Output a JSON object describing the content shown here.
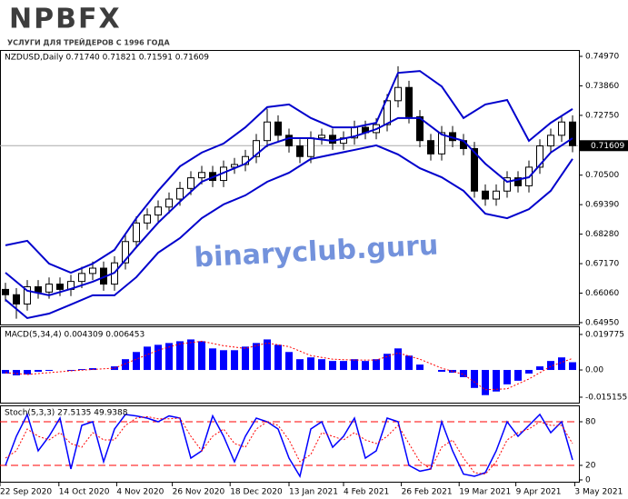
{
  "logo": {
    "brand": "NPBFX",
    "tagline": "УСЛУГИ ДЛЯ ТРЕЙДЕРОВ С 1996 ГОДА"
  },
  "watermark": "binaryclub.guru",
  "chart_data": [
    {
      "type": "candlestick",
      "title": "NZDUSD,Daily  0.71740 0.71821 0.71591 0.71609",
      "color": "#000000",
      "up_fill": "#ffffff",
      "down_fill": "#000000",
      "xlim": [
        -0.5,
        52.5
      ],
      "ylim": [
        0.6488,
        0.7521
      ],
      "yticks": [
        {
          "value": 0.7497,
          "label": "0.74970"
        },
        {
          "value": 0.7386,
          "label": "0.73860"
        },
        {
          "value": 0.7275,
          "label": "0.72750"
        },
        {
          "value": 0.705,
          "label": "0.70500"
        },
        {
          "value": 0.6939,
          "label": "0.69390"
        },
        {
          "value": 0.6828,
          "label": "0.68280"
        },
        {
          "value": 0.6717,
          "label": "0.67170"
        },
        {
          "value": 0.6606,
          "label": "0.66060"
        },
        {
          "value": 0.6495,
          "label": "0.64950"
        }
      ],
      "current": {
        "value": 0.71609,
        "label": "0.71609"
      },
      "x": [
        0,
        1,
        2,
        3,
        4,
        5,
        6,
        7,
        8,
        9,
        10,
        11,
        12,
        13,
        14,
        15,
        16,
        17,
        18,
        19,
        20,
        21,
        22,
        23,
        24,
        25,
        26,
        27,
        28,
        29,
        30,
        31,
        32,
        33,
        34,
        35,
        36,
        37,
        38,
        39,
        40,
        41,
        42,
        43,
        44,
        45,
        46,
        47,
        48,
        49,
        50,
        51,
        52
      ],
      "open": [
        0.662,
        0.66,
        0.6565,
        0.663,
        0.661,
        0.664,
        0.662,
        0.665,
        0.668,
        0.67,
        0.664,
        0.672,
        0.68,
        0.687,
        0.69,
        0.693,
        0.696,
        0.7,
        0.704,
        0.706,
        0.703,
        0.708,
        0.709,
        0.712,
        0.718,
        0.725,
        0.72,
        0.716,
        0.712,
        0.719,
        0.72,
        0.717,
        0.719,
        0.723,
        0.721,
        0.724,
        0.733,
        0.738,
        0.727,
        0.718,
        0.713,
        0.721,
        0.718,
        0.715,
        0.699,
        0.696,
        0.699,
        0.704,
        0.701,
        0.708,
        0.716,
        0.72,
        0.725
      ],
      "high": [
        0.6645,
        0.6625,
        0.6655,
        0.6655,
        0.6665,
        0.6665,
        0.6675,
        0.6705,
        0.6725,
        0.6725,
        0.6745,
        0.6825,
        0.6895,
        0.6925,
        0.6955,
        0.6985,
        0.7025,
        0.7065,
        0.7085,
        0.7085,
        0.7105,
        0.7115,
        0.7145,
        0.7205,
        0.73,
        0.7275,
        0.7225,
        0.7185,
        0.7215,
        0.7225,
        0.7225,
        0.7215,
        0.7255,
        0.7255,
        0.7265,
        0.7355,
        0.746,
        0.7405,
        0.7295,
        0.7205,
        0.7235,
        0.7235,
        0.7205,
        0.7175,
        0.7015,
        0.7015,
        0.7065,
        0.7065,
        0.7105,
        0.7185,
        0.7225,
        0.7275,
        0.7275
      ],
      "low": [
        0.6575,
        0.651,
        0.654,
        0.6585,
        0.6585,
        0.6595,
        0.6595,
        0.6625,
        0.6655,
        0.6615,
        0.6615,
        0.6695,
        0.6775,
        0.6845,
        0.6875,
        0.6905,
        0.6935,
        0.6975,
        0.7015,
        0.7005,
        0.7005,
        0.7055,
        0.7065,
        0.7095,
        0.7155,
        0.7175,
        0.7135,
        0.7095,
        0.7095,
        0.7165,
        0.7145,
        0.7145,
        0.7165,
        0.7185,
        0.7185,
        0.7215,
        0.7305,
        0.7245,
        0.7155,
        0.7105,
        0.7105,
        0.7155,
        0.7125,
        0.6965,
        0.6935,
        0.6935,
        0.6965,
        0.6985,
        0.6985,
        0.7055,
        0.7135,
        0.7175,
        0.7136
      ],
      "close": [
        0.66,
        0.6565,
        0.663,
        0.661,
        0.664,
        0.662,
        0.665,
        0.668,
        0.67,
        0.664,
        0.672,
        0.68,
        0.687,
        0.69,
        0.693,
        0.696,
        0.7,
        0.704,
        0.706,
        0.703,
        0.708,
        0.709,
        0.712,
        0.718,
        0.725,
        0.72,
        0.716,
        0.712,
        0.719,
        0.72,
        0.717,
        0.719,
        0.723,
        0.721,
        0.724,
        0.733,
        0.738,
        0.727,
        0.718,
        0.713,
        0.721,
        0.718,
        0.715,
        0.699,
        0.696,
        0.699,
        0.704,
        0.701,
        0.708,
        0.716,
        0.72,
        0.725,
        0.71609
      ],
      "bands": [
        {
          "color": "#0000cc",
          "x": [
            0,
            2,
            4,
            6,
            8,
            10,
            12,
            14,
            16,
            18,
            20,
            22,
            24,
            26,
            28,
            30,
            32,
            34,
            36,
            38,
            40,
            42,
            44,
            46,
            48,
            50,
            52
          ],
          "values": [
            0.6786,
            0.6803,
            0.6717,
            0.6683,
            0.6717,
            0.6769,
            0.6888,
            0.6991,
            0.7083,
            0.7135,
            0.7169,
            0.723,
            0.7306,
            0.7316,
            0.7265,
            0.723,
            0.723,
            0.7247,
            0.7435,
            0.7442,
            0.7384,
            0.7265,
            0.7316,
            0.7333,
            0.7179,
            0.7247,
            0.7299
          ]
        },
        {
          "color": "#0000cc",
          "x": [
            0,
            2,
            4,
            6,
            8,
            10,
            12,
            14,
            16,
            18,
            20,
            22,
            24,
            26,
            28,
            30,
            32,
            34,
            36,
            38,
            40,
            42,
            44,
            46,
            48,
            50,
            52
          ],
          "values": [
            0.6683,
            0.6615,
            0.6598,
            0.6622,
            0.6649,
            0.6683,
            0.6779,
            0.6871,
            0.695,
            0.7025,
            0.7059,
            0.7093,
            0.7162,
            0.7189,
            0.7189,
            0.7179,
            0.7196,
            0.7223,
            0.7265,
            0.7265,
            0.7203,
            0.7179,
            0.7093,
            0.7025,
            0.7042,
            0.7135,
            0.7189
          ]
        },
        {
          "color": "#0000cc",
          "x": [
            0,
            2,
            4,
            6,
            8,
            10,
            12,
            14,
            16,
            18,
            20,
            22,
            24,
            26,
            28,
            30,
            32,
            34,
            36,
            38,
            40,
            42,
            44,
            46,
            48,
            50,
            52
          ],
          "values": [
            0.6581,
            0.6512,
            0.6529,
            0.6563,
            0.6598,
            0.6598,
            0.6666,
            0.6758,
            0.6813,
            0.6888,
            0.694,
            0.6974,
            0.7025,
            0.7059,
            0.7111,
            0.7128,
            0.7145,
            0.7162,
            0.7128,
            0.7076,
            0.7042,
            0.6991,
            0.6905,
            0.6888,
            0.6922,
            0.6991,
            0.7111
          ]
        }
      ]
    },
    {
      "type": "bar",
      "title": "MACD(5,34,4) 0.004309 0.006453",
      "color": "#0000ff",
      "xlim": [
        -0.5,
        52.5
      ],
      "ylim": [
        -0.0182,
        0.0238
      ],
      "yticks": [
        0.019775,
        {
          "value": 0,
          "label": "0.00"
        },
        -0.015155
      ],
      "x": [
        0,
        1,
        2,
        3,
        4,
        5,
        6,
        7,
        8,
        9,
        10,
        11,
        12,
        13,
        14,
        15,
        16,
        17,
        18,
        19,
        20,
        21,
        22,
        23,
        24,
        25,
        26,
        27,
        28,
        29,
        30,
        31,
        32,
        33,
        34,
        35,
        36,
        37,
        38,
        39,
        40,
        41,
        42,
        43,
        44,
        45,
        46,
        47,
        48,
        49,
        50,
        51,
        52
      ],
      "values": [
        -0.002,
        -0.003,
        -0.0025,
        -0.001,
        -0.0005,
        0,
        -0.0005,
        0.0005,
        0.001,
        0,
        0.002,
        0.006,
        0.01,
        0.013,
        0.014,
        0.015,
        0.016,
        0.017,
        0.016,
        0.012,
        0.011,
        0.011,
        0.013,
        0.015,
        0.017,
        0.014,
        0.01,
        0.006,
        0.007,
        0.006,
        0.005,
        0.005,
        0.006,
        0.005,
        0.006,
        0.009,
        0.012,
        0.008,
        0.003,
        0,
        -0.001,
        -0.0015,
        -0.004,
        -0.01,
        -0.014,
        -0.012,
        -0.008,
        -0.006,
        -0.002,
        0.002,
        0.005,
        0.007,
        0.004309
      ],
      "signal": {
        "color": "#ff0000",
        "x": [
          0,
          2,
          4,
          6,
          8,
          10,
          12,
          14,
          16,
          18,
          20,
          22,
          24,
          26,
          28,
          30,
          32,
          34,
          36,
          38,
          40,
          42,
          44,
          46,
          48,
          50,
          52
        ],
        "values": [
          -0.0015,
          -0.0025,
          -0.0015,
          -0.0005,
          0.0003,
          0.001,
          0.006,
          0.011,
          0.0145,
          0.016,
          0.0135,
          0.012,
          0.015,
          0.013,
          0.008,
          0.006,
          0.0055,
          0.0055,
          0.0095,
          0.006,
          0.001,
          -0.0025,
          -0.011,
          -0.0105,
          -0.005,
          0.002,
          0.006453
        ]
      }
    },
    {
      "type": "line",
      "title": "Stoch(5,3,3) 27.5135 49.9388",
      "xlim": [
        -0.5,
        52.5
      ],
      "ylim": [
        0,
        100
      ],
      "yticks": [
        0,
        20,
        80
      ],
      "levels": [
        20,
        80
      ],
      "level_color": "#ff0000",
      "xticks": [
        {
          "value": -0.5,
          "label": "22 Sep 2020"
        },
        {
          "value": 4.9,
          "label": "14 Oct 2020"
        },
        {
          "value": 10.2,
          "label": "4 Nov 2020"
        },
        {
          "value": 15.3,
          "label": "26 Nov 2020"
        },
        {
          "value": 20.6,
          "label": "18 Dec 2020"
        },
        {
          "value": 26,
          "label": "13 Jan 2021"
        },
        {
          "value": 31,
          "label": "4 Feb 2021"
        },
        {
          "value": 36.3,
          "label": "26 Feb 2021"
        },
        {
          "value": 41.6,
          "label": "19 Mar 2021"
        },
        {
          "value": 46.8,
          "label": "9 Apr 2021"
        },
        {
          "value": 52.2,
          "label": "3 May 2021"
        }
      ],
      "series": [
        {
          "color": "#0000ff",
          "dashed": false,
          "x": [
            0,
            1,
            2,
            3,
            4,
            5,
            6,
            7,
            8,
            9,
            10,
            11,
            12,
            13,
            14,
            15,
            16,
            17,
            18,
            19,
            20,
            21,
            22,
            23,
            24,
            25,
            26,
            27,
            28,
            29,
            30,
            31,
            32,
            33,
            34,
            35,
            36,
            37,
            38,
            39,
            40,
            41,
            42,
            43,
            44,
            45,
            46,
            47,
            48,
            49,
            50,
            51,
            52
          ],
          "values": [
            20,
            60,
            90,
            40,
            60,
            85,
            15,
            75,
            80,
            25,
            70,
            90,
            88,
            85,
            80,
            88,
            85,
            30,
            40,
            88,
            60,
            25,
            60,
            85,
            80,
            70,
            30,
            5,
            70,
            80,
            45,
            60,
            85,
            30,
            40,
            85,
            80,
            20,
            12,
            15,
            80,
            40,
            8,
            5,
            10,
            40,
            80,
            60,
            75,
            90,
            65,
            80,
            27.5135
          ]
        },
        {
          "color": "#ff0000",
          "dashed": true,
          "x": [
            0,
            1,
            2,
            3,
            4,
            5,
            6,
            7,
            8,
            9,
            10,
            11,
            12,
            13,
            14,
            15,
            16,
            17,
            18,
            19,
            20,
            21,
            22,
            23,
            24,
            25,
            26,
            27,
            28,
            29,
            30,
            31,
            32,
            33,
            34,
            35,
            36,
            37,
            38,
            39,
            40,
            41,
            42,
            43,
            44,
            45,
            46,
            47,
            48,
            49,
            50,
            51,
            52
          ],
          "values": [
            30,
            40,
            70,
            60,
            55,
            65,
            50,
            45,
            65,
            55,
            55,
            75,
            85,
            87,
            84,
            84,
            85,
            60,
            40,
            60,
            70,
            50,
            45,
            70,
            80,
            75,
            55,
            25,
            35,
            65,
            60,
            55,
            65,
            55,
            50,
            60,
            75,
            50,
            25,
            15,
            45,
            55,
            30,
            10,
            8,
            25,
            55,
            65,
            70,
            80,
            75,
            75,
            49.9388
          ]
        }
      ]
    }
  ]
}
